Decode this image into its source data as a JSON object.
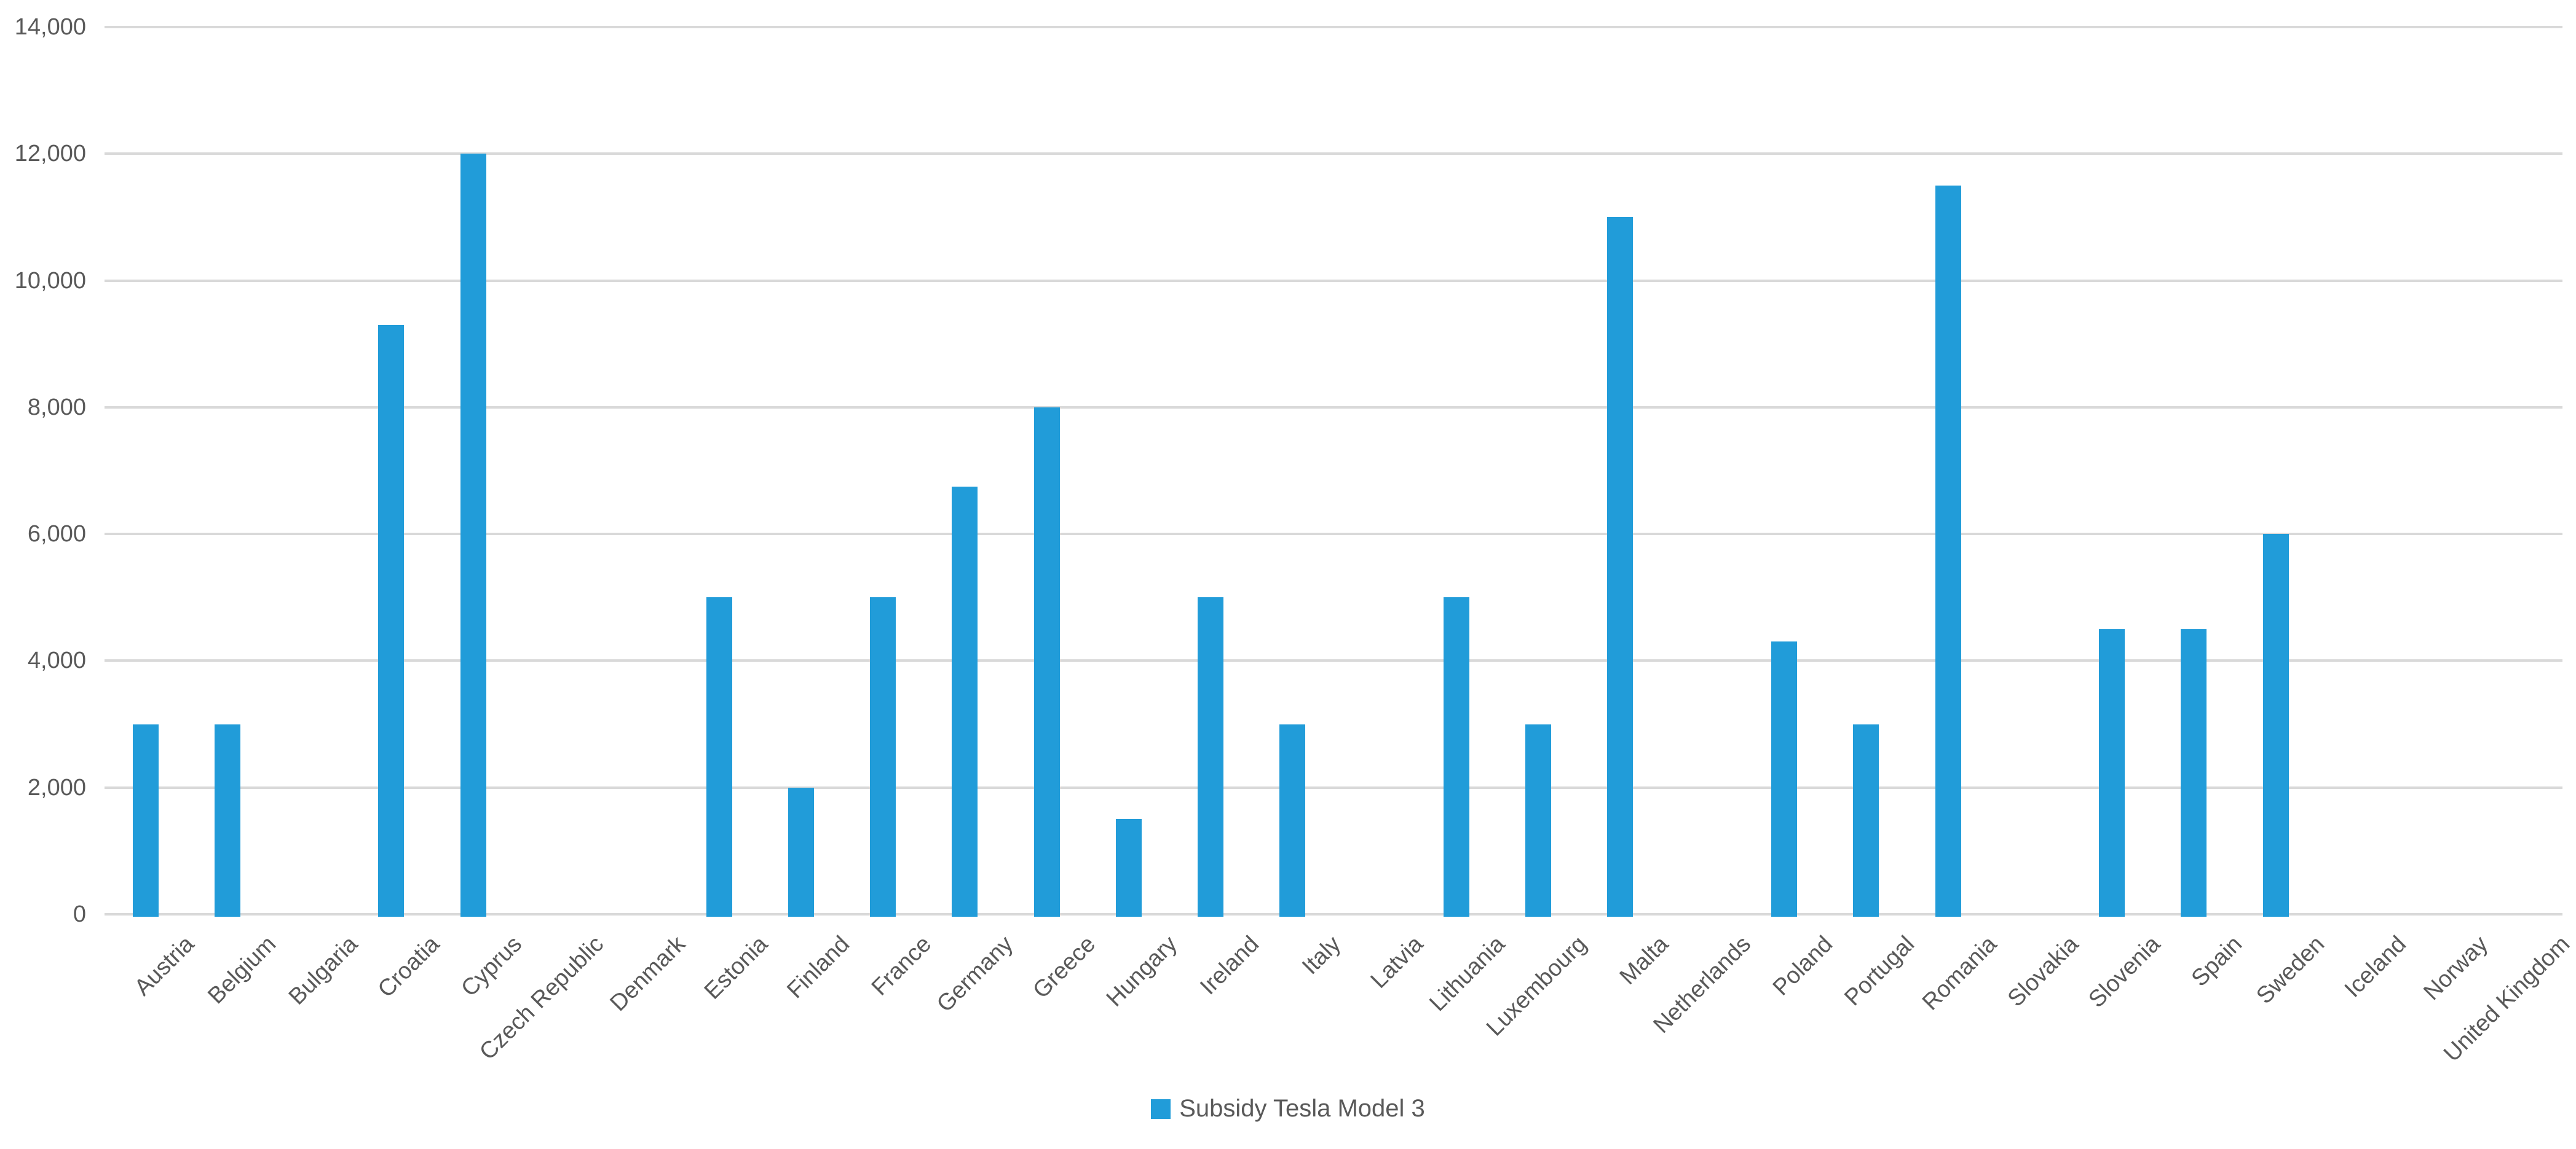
{
  "chart_data": {
    "type": "bar",
    "title": "",
    "categories": [
      "Austria",
      "Belgium",
      "Bulgaria",
      "Croatia",
      "Cyprus",
      "Czech Republic",
      "Denmark",
      "Estonia",
      "Finland",
      "France",
      "Germany",
      "Greece",
      "Hungary",
      "Ireland",
      "Italy",
      "Latvia",
      "Lithuania",
      "Luxembourg",
      "Malta",
      "Netherlands",
      "Poland",
      "Portugal",
      "Romania",
      "Slovakia",
      "Slovenia",
      "Spain",
      "Sweden",
      "Iceland",
      "Norway",
      "United Kingdom"
    ],
    "series": [
      {
        "name": "Subsidy Tesla Model 3",
        "color": "#219cd9",
        "values": [
          3000,
          3000,
          0,
          9300,
          12000,
          0,
          0,
          5000,
          2000,
          5000,
          6750,
          8000,
          1500,
          5000,
          3000,
          0,
          5000,
          3000,
          11000,
          0,
          4300,
          3000,
          11500,
          0,
          4500,
          4500,
          6000,
          0,
          0,
          0
        ]
      }
    ],
    "xlabel": "",
    "ylabel": "",
    "ylim": [
      0,
      14000
    ],
    "ytick_step": 2000,
    "ytick_labels": [
      "0",
      "2,000",
      "4,000",
      "6,000",
      "8,000",
      "10,000",
      "12,000",
      "14,000"
    ],
    "grid": "horizontal",
    "legend_position": "bottom-center"
  },
  "colors": {
    "bar": "#219cd9",
    "gridline": "#d9d9d9",
    "axis_text": "#595959",
    "background": "#ffffff"
  }
}
